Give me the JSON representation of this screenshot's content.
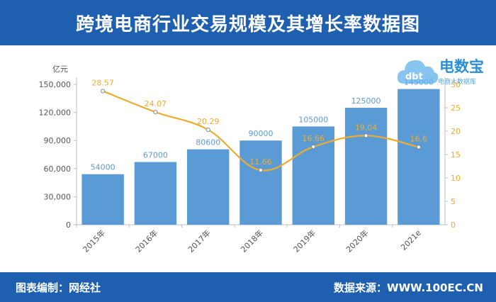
{
  "title": "跨境电商行业交易规模及其增长率数据图",
  "footer": {
    "left": "图表编制：网经社",
    "right": "数据来源：WWW.100EC.CN"
  },
  "logo": {
    "name": "电数宝",
    "sub": "电商大数据库"
  },
  "colors": {
    "header": "#1f5fb0",
    "bar": "#5b9bd5",
    "line": "#f0ab2e",
    "bar_label": "#5b9bd5",
    "line_label": "#f0ab2e"
  },
  "chart_data": {
    "type": "bar",
    "categories": [
      "2015年",
      "2016年",
      "2017年",
      "2018年",
      "2019年",
      "2020年",
      "2021e"
    ],
    "series": [
      {
        "type": "bar",
        "values": [
          54000,
          67000,
          80600,
          90000,
          105000,
          125000,
          145000
        ],
        "labels": [
          "54000",
          "67000",
          "80600",
          "90000",
          "105000",
          "125000",
          "145000"
        ],
        "axis": "left"
      },
      {
        "type": "line",
        "values": [
          28.57,
          24.07,
          20.29,
          11.66,
          16.66,
          19.04,
          16.6
        ],
        "labels": [
          "28.57",
          "24.07",
          "20.29",
          "11.66",
          "16.66",
          "19.04",
          "16.6"
        ],
        "axis": "right"
      }
    ],
    "y_left": {
      "unit": "亿元",
      "min": 0,
      "max": 150000,
      "ticks": [
        0,
        30000,
        60000,
        90000,
        120000,
        150000
      ],
      "tick_labels": [
        "0",
        "30,000",
        "60,000",
        "90,000",
        "120,000",
        "150,000"
      ]
    },
    "y_right": {
      "min": 0,
      "max": 30,
      "ticks": [
        0,
        5,
        10,
        15,
        20,
        25,
        30
      ],
      "tick_labels": [
        "0",
        "5",
        "10",
        "15",
        "20",
        "25",
        "30"
      ]
    },
    "grid": false
  }
}
